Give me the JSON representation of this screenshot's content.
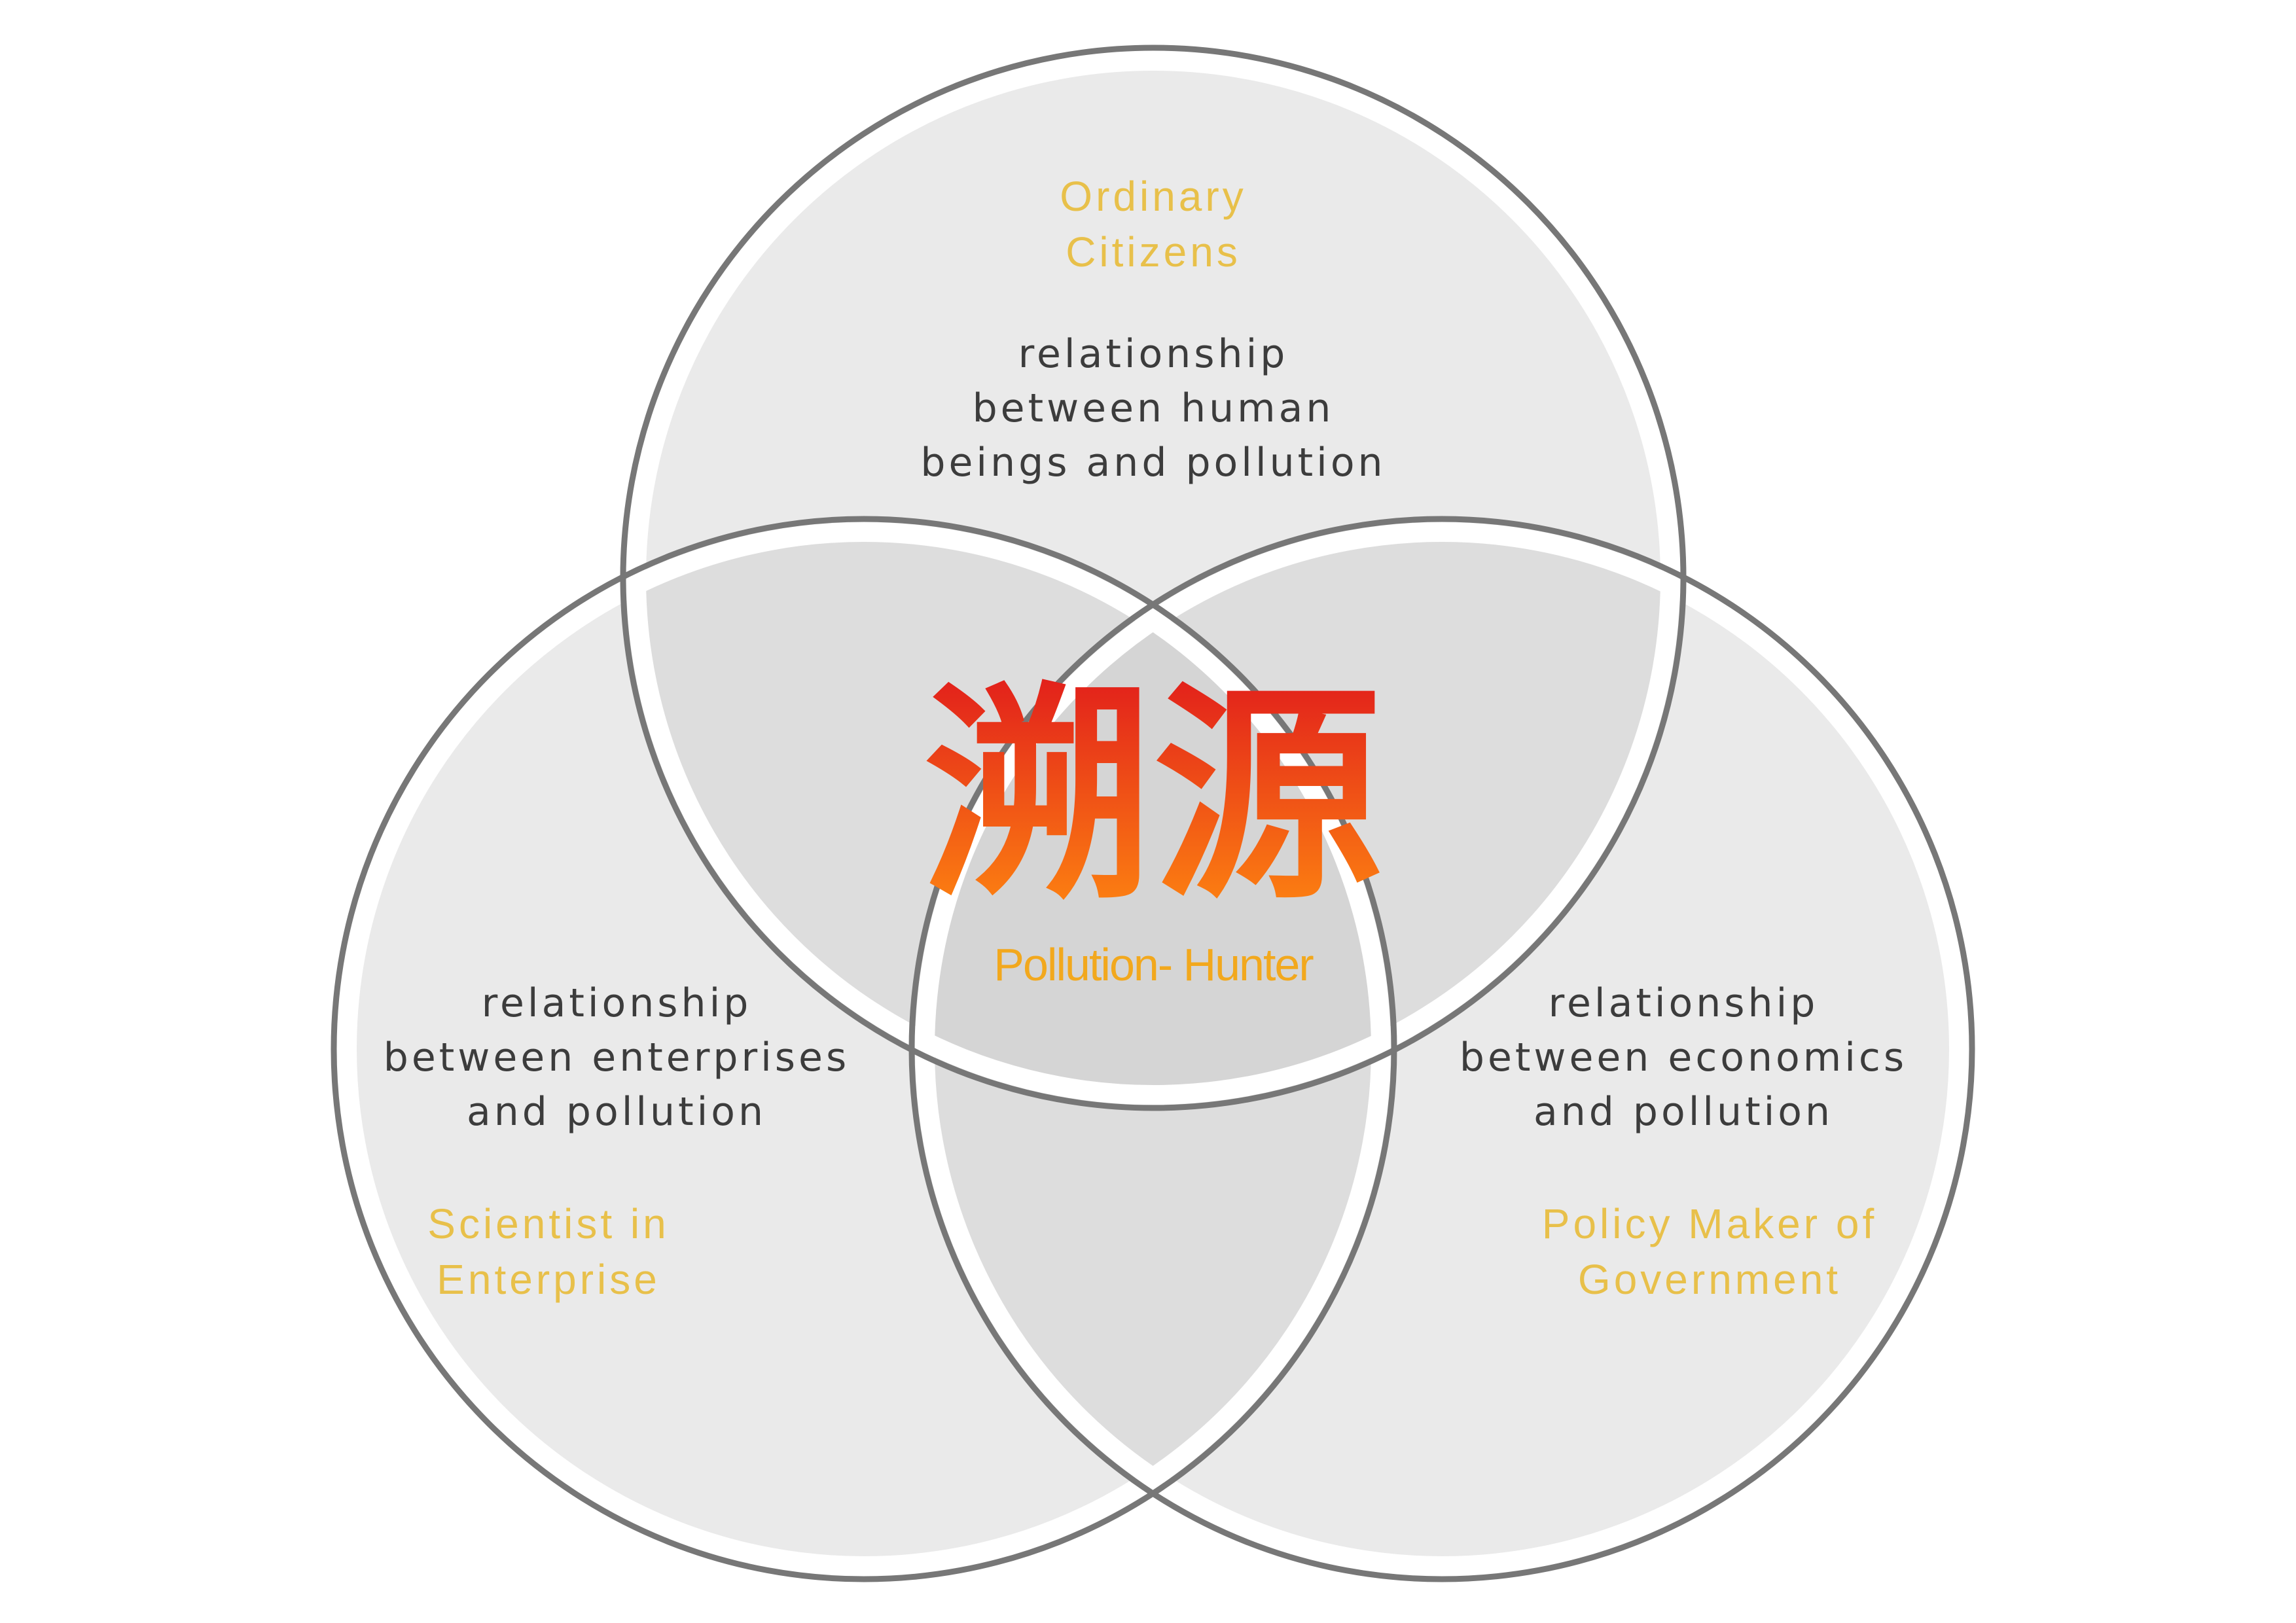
{
  "colors": {
    "role_label": "#e8c04a",
    "relationship_label": "#3c3c3c",
    "circle_outline": "#777777",
    "circle_fill": "#c9c9c9",
    "logo_gradient_top": "#e0191c",
    "logo_gradient_bottom": "#ff8a10",
    "logo_subtitle": "#f2a81d"
  },
  "logo": {
    "chinese": "溯源",
    "english": "Pollution- Hunter"
  },
  "top": {
    "role": [
      "Ordinary",
      "Citizens"
    ],
    "relationship": [
      "relationship",
      "between human",
      "beings and pollution"
    ]
  },
  "left": {
    "role": [
      "Scientist in",
      "Enterprise"
    ],
    "relationship": [
      "relationship",
      "between enterprises",
      "and pollution"
    ]
  },
  "right": {
    "role": [
      "Policy Maker of",
      "Government"
    ],
    "relationship": [
      "relationship",
      "between economics",
      "and pollution"
    ]
  }
}
